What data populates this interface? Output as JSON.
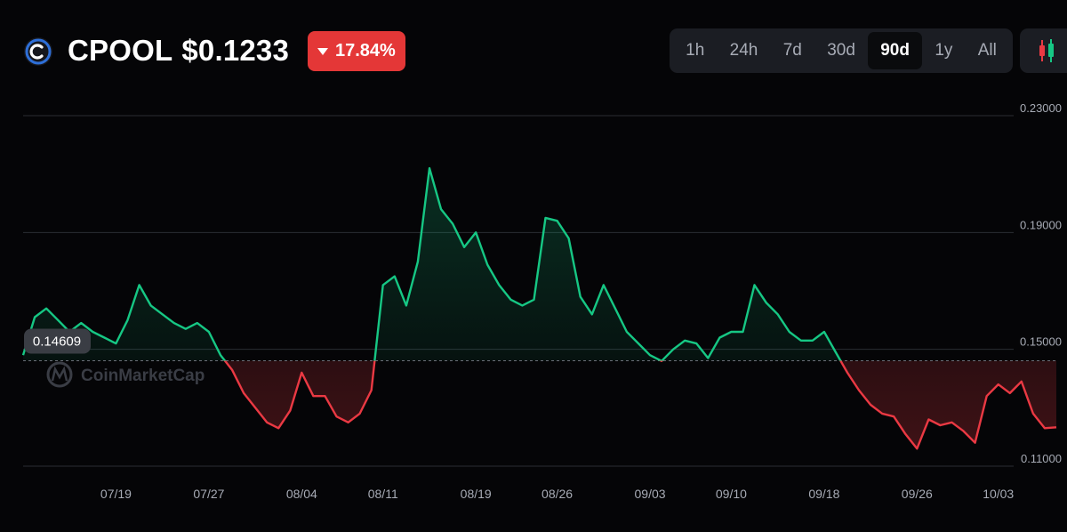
{
  "header": {
    "symbol": "CPOOL",
    "price": "$0.1233",
    "change": "17.84%",
    "change_direction": "down",
    "change_color": "#e43737",
    "logo_icon": "cpool-logo-icon"
  },
  "ranges": {
    "items": [
      "1h",
      "24h",
      "7d",
      "30d",
      "90d",
      "1y",
      "All"
    ],
    "active": "90d"
  },
  "chart_type_icon": "candlestick-icon",
  "watermark": "CoinMarketCap",
  "chart_data": {
    "type": "line",
    "title": "",
    "xlabel": "",
    "ylabel": "",
    "ylim": [
      0.11,
      0.23
    ],
    "yticks": [
      "0.23000",
      "0.19000",
      "0.15000",
      "0.11000"
    ],
    "ytick_values": [
      0.23,
      0.19,
      0.15,
      0.11
    ],
    "x_ticks": [
      "07/19",
      "07/27",
      "08/04",
      "08/11",
      "08/19",
      "08/26",
      "09/03",
      "09/10",
      "09/18",
      "09/26",
      "10/03"
    ],
    "xlim": [
      "07/11",
      "10/08"
    ],
    "baseline": 0.14609,
    "baseline_label": "0.14609",
    "up_color": "#16c784",
    "down_color": "#ea3943",
    "grid": true,
    "series": [
      {
        "name": "",
        "x": [
          "07/11",
          "07/12",
          "07/13",
          "07/14",
          "07/15",
          "07/16",
          "07/17",
          "07/18",
          "07/19",
          "07/20",
          "07/21",
          "07/22",
          "07/23",
          "07/24",
          "07/25",
          "07/26",
          "07/27",
          "07/28",
          "07/29",
          "07/30",
          "07/31",
          "08/01",
          "08/02",
          "08/03",
          "08/04",
          "08/05",
          "08/06",
          "08/07",
          "08/08",
          "08/09",
          "08/10",
          "08/11",
          "08/12",
          "08/13",
          "08/14",
          "08/15",
          "08/16",
          "08/17",
          "08/18",
          "08/19",
          "08/20",
          "08/21",
          "08/22",
          "08/23",
          "08/24",
          "08/25",
          "08/26",
          "08/27",
          "08/28",
          "08/29",
          "08/30",
          "08/31",
          "09/01",
          "09/02",
          "09/03",
          "09/04",
          "09/05",
          "09/06",
          "09/07",
          "09/08",
          "09/09",
          "09/10",
          "09/11",
          "09/12",
          "09/13",
          "09/14",
          "09/15",
          "09/16",
          "09/17",
          "09/18",
          "09/19",
          "09/20",
          "09/21",
          "09/22",
          "09/23",
          "09/24",
          "09/25",
          "09/26",
          "09/27",
          "09/28",
          "09/29",
          "09/30",
          "10/01",
          "10/02",
          "10/03",
          "10/04",
          "10/05",
          "10/06",
          "10/07",
          "10/08"
        ],
        "values": [
          0.148,
          0.161,
          0.164,
          0.16,
          0.156,
          0.159,
          0.156,
          0.154,
          0.152,
          0.16,
          0.172,
          0.165,
          0.162,
          0.159,
          0.157,
          0.159,
          0.156,
          0.148,
          0.143,
          0.135,
          0.13,
          0.125,
          0.123,
          0.129,
          0.142,
          0.134,
          0.134,
          0.127,
          0.125,
          0.128,
          0.136,
          0.172,
          0.175,
          0.165,
          0.18,
          0.212,
          0.198,
          0.193,
          0.185,
          0.19,
          0.179,
          0.172,
          0.167,
          0.165,
          0.167,
          0.195,
          0.194,
          0.188,
          0.168,
          0.162,
          0.172,
          0.164,
          0.156,
          0.152,
          0.148,
          0.146,
          0.15,
          0.153,
          0.152,
          0.147,
          0.154,
          0.156,
          0.156,
          0.172,
          0.166,
          0.162,
          0.156,
          0.153,
          0.153,
          0.156,
          0.149,
          0.142,
          0.136,
          0.131,
          0.128,
          0.127,
          0.121,
          0.116,
          0.126,
          0.124,
          0.125,
          0.122,
          0.118,
          0.134,
          0.138,
          0.135,
          0.139,
          0.128,
          0.123,
          0.1233
        ]
      }
    ]
  }
}
